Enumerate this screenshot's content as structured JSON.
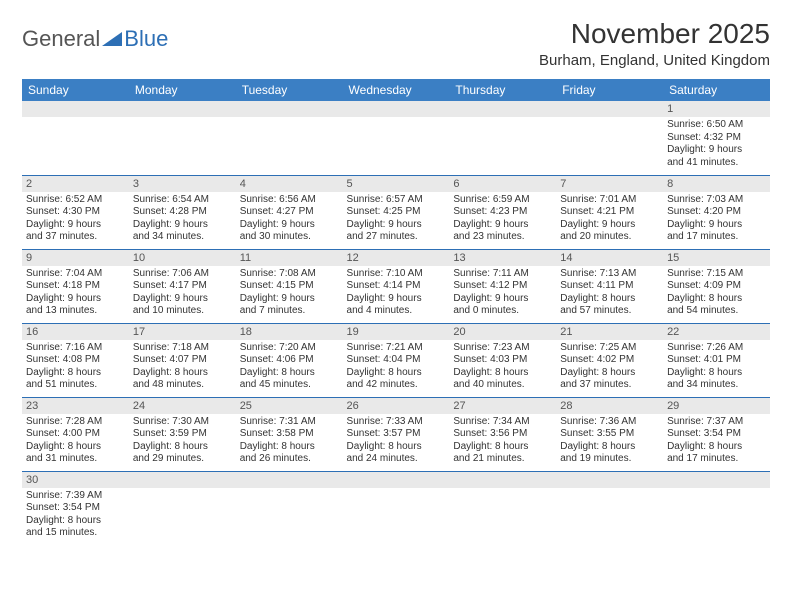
{
  "logo": {
    "t1": "General",
    "t2": "Blue"
  },
  "title": "November 2025",
  "location": "Burham, England, United Kingdom",
  "colors": {
    "header_bg": "#3b7fc4",
    "header_text": "#ffffff",
    "daynum_bg": "#e9e9e9",
    "border": "#2d6fb5",
    "body_text": "#333333",
    "logo_gray": "#555555",
    "logo_blue": "#2d6fb5",
    "background": "#ffffff"
  },
  "typography": {
    "title_fontsize": 28,
    "location_fontsize": 15,
    "header_fontsize": 12,
    "daynum_fontsize": 11,
    "cell_fontsize": 10
  },
  "columns": [
    "Sunday",
    "Monday",
    "Tuesday",
    "Wednesday",
    "Thursday",
    "Friday",
    "Saturday"
  ],
  "weeks": [
    [
      {
        "n": "",
        "l1": "",
        "l2": "",
        "l3": "",
        "l4": ""
      },
      {
        "n": "",
        "l1": "",
        "l2": "",
        "l3": "",
        "l4": ""
      },
      {
        "n": "",
        "l1": "",
        "l2": "",
        "l3": "",
        "l4": ""
      },
      {
        "n": "",
        "l1": "",
        "l2": "",
        "l3": "",
        "l4": ""
      },
      {
        "n": "",
        "l1": "",
        "l2": "",
        "l3": "",
        "l4": ""
      },
      {
        "n": "",
        "l1": "",
        "l2": "",
        "l3": "",
        "l4": ""
      },
      {
        "n": "1",
        "l1": "Sunrise: 6:50 AM",
        "l2": "Sunset: 4:32 PM",
        "l3": "Daylight: 9 hours",
        "l4": "and 41 minutes."
      }
    ],
    [
      {
        "n": "2",
        "l1": "Sunrise: 6:52 AM",
        "l2": "Sunset: 4:30 PM",
        "l3": "Daylight: 9 hours",
        "l4": "and 37 minutes."
      },
      {
        "n": "3",
        "l1": "Sunrise: 6:54 AM",
        "l2": "Sunset: 4:28 PM",
        "l3": "Daylight: 9 hours",
        "l4": "and 34 minutes."
      },
      {
        "n": "4",
        "l1": "Sunrise: 6:56 AM",
        "l2": "Sunset: 4:27 PM",
        "l3": "Daylight: 9 hours",
        "l4": "and 30 minutes."
      },
      {
        "n": "5",
        "l1": "Sunrise: 6:57 AM",
        "l2": "Sunset: 4:25 PM",
        "l3": "Daylight: 9 hours",
        "l4": "and 27 minutes."
      },
      {
        "n": "6",
        "l1": "Sunrise: 6:59 AM",
        "l2": "Sunset: 4:23 PM",
        "l3": "Daylight: 9 hours",
        "l4": "and 23 minutes."
      },
      {
        "n": "7",
        "l1": "Sunrise: 7:01 AM",
        "l2": "Sunset: 4:21 PM",
        "l3": "Daylight: 9 hours",
        "l4": "and 20 minutes."
      },
      {
        "n": "8",
        "l1": "Sunrise: 7:03 AM",
        "l2": "Sunset: 4:20 PM",
        "l3": "Daylight: 9 hours",
        "l4": "and 17 minutes."
      }
    ],
    [
      {
        "n": "9",
        "l1": "Sunrise: 7:04 AM",
        "l2": "Sunset: 4:18 PM",
        "l3": "Daylight: 9 hours",
        "l4": "and 13 minutes."
      },
      {
        "n": "10",
        "l1": "Sunrise: 7:06 AM",
        "l2": "Sunset: 4:17 PM",
        "l3": "Daylight: 9 hours",
        "l4": "and 10 minutes."
      },
      {
        "n": "11",
        "l1": "Sunrise: 7:08 AM",
        "l2": "Sunset: 4:15 PM",
        "l3": "Daylight: 9 hours",
        "l4": "and 7 minutes."
      },
      {
        "n": "12",
        "l1": "Sunrise: 7:10 AM",
        "l2": "Sunset: 4:14 PM",
        "l3": "Daylight: 9 hours",
        "l4": "and 4 minutes."
      },
      {
        "n": "13",
        "l1": "Sunrise: 7:11 AM",
        "l2": "Sunset: 4:12 PM",
        "l3": "Daylight: 9 hours",
        "l4": "and 0 minutes."
      },
      {
        "n": "14",
        "l1": "Sunrise: 7:13 AM",
        "l2": "Sunset: 4:11 PM",
        "l3": "Daylight: 8 hours",
        "l4": "and 57 minutes."
      },
      {
        "n": "15",
        "l1": "Sunrise: 7:15 AM",
        "l2": "Sunset: 4:09 PM",
        "l3": "Daylight: 8 hours",
        "l4": "and 54 minutes."
      }
    ],
    [
      {
        "n": "16",
        "l1": "Sunrise: 7:16 AM",
        "l2": "Sunset: 4:08 PM",
        "l3": "Daylight: 8 hours",
        "l4": "and 51 minutes."
      },
      {
        "n": "17",
        "l1": "Sunrise: 7:18 AM",
        "l2": "Sunset: 4:07 PM",
        "l3": "Daylight: 8 hours",
        "l4": "and 48 minutes."
      },
      {
        "n": "18",
        "l1": "Sunrise: 7:20 AM",
        "l2": "Sunset: 4:06 PM",
        "l3": "Daylight: 8 hours",
        "l4": "and 45 minutes."
      },
      {
        "n": "19",
        "l1": "Sunrise: 7:21 AM",
        "l2": "Sunset: 4:04 PM",
        "l3": "Daylight: 8 hours",
        "l4": "and 42 minutes."
      },
      {
        "n": "20",
        "l1": "Sunrise: 7:23 AM",
        "l2": "Sunset: 4:03 PM",
        "l3": "Daylight: 8 hours",
        "l4": "and 40 minutes."
      },
      {
        "n": "21",
        "l1": "Sunrise: 7:25 AM",
        "l2": "Sunset: 4:02 PM",
        "l3": "Daylight: 8 hours",
        "l4": "and 37 minutes."
      },
      {
        "n": "22",
        "l1": "Sunrise: 7:26 AM",
        "l2": "Sunset: 4:01 PM",
        "l3": "Daylight: 8 hours",
        "l4": "and 34 minutes."
      }
    ],
    [
      {
        "n": "23",
        "l1": "Sunrise: 7:28 AM",
        "l2": "Sunset: 4:00 PM",
        "l3": "Daylight: 8 hours",
        "l4": "and 31 minutes."
      },
      {
        "n": "24",
        "l1": "Sunrise: 7:30 AM",
        "l2": "Sunset: 3:59 PM",
        "l3": "Daylight: 8 hours",
        "l4": "and 29 minutes."
      },
      {
        "n": "25",
        "l1": "Sunrise: 7:31 AM",
        "l2": "Sunset: 3:58 PM",
        "l3": "Daylight: 8 hours",
        "l4": "and 26 minutes."
      },
      {
        "n": "26",
        "l1": "Sunrise: 7:33 AM",
        "l2": "Sunset: 3:57 PM",
        "l3": "Daylight: 8 hours",
        "l4": "and 24 minutes."
      },
      {
        "n": "27",
        "l1": "Sunrise: 7:34 AM",
        "l2": "Sunset: 3:56 PM",
        "l3": "Daylight: 8 hours",
        "l4": "and 21 minutes."
      },
      {
        "n": "28",
        "l1": "Sunrise: 7:36 AM",
        "l2": "Sunset: 3:55 PM",
        "l3": "Daylight: 8 hours",
        "l4": "and 19 minutes."
      },
      {
        "n": "29",
        "l1": "Sunrise: 7:37 AM",
        "l2": "Sunset: 3:54 PM",
        "l3": "Daylight: 8 hours",
        "l4": "and 17 minutes."
      }
    ],
    [
      {
        "n": "30",
        "l1": "Sunrise: 7:39 AM",
        "l2": "Sunset: 3:54 PM",
        "l3": "Daylight: 8 hours",
        "l4": "and 15 minutes."
      },
      {
        "n": "",
        "l1": "",
        "l2": "",
        "l3": "",
        "l4": ""
      },
      {
        "n": "",
        "l1": "",
        "l2": "",
        "l3": "",
        "l4": ""
      },
      {
        "n": "",
        "l1": "",
        "l2": "",
        "l3": "",
        "l4": ""
      },
      {
        "n": "",
        "l1": "",
        "l2": "",
        "l3": "",
        "l4": ""
      },
      {
        "n": "",
        "l1": "",
        "l2": "",
        "l3": "",
        "l4": ""
      },
      {
        "n": "",
        "l1": "",
        "l2": "",
        "l3": "",
        "l4": ""
      }
    ]
  ]
}
